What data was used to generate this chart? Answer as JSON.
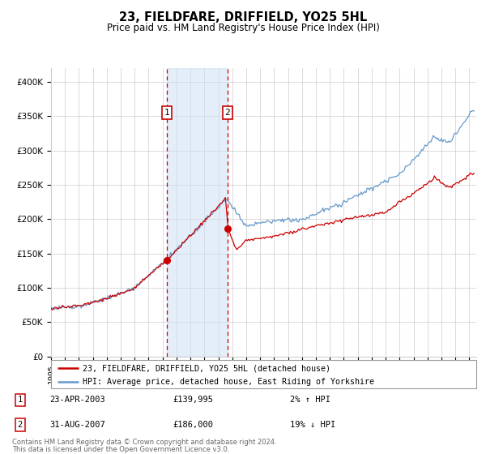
{
  "title": "23, FIELDFARE, DRIFFIELD, YO25 5HL",
  "subtitle": "Price paid vs. HM Land Registry's House Price Index (HPI)",
  "red_label": "23, FIELDFARE, DRIFFIELD, YO25 5HL (detached house)",
  "blue_label": "HPI: Average price, detached house, East Riding of Yorkshire",
  "footnote1": "Contains HM Land Registry data © Crown copyright and database right 2024.",
  "footnote2": "This data is licensed under the Open Government Licence v3.0.",
  "sale1_date": "23-APR-2003",
  "sale1_price": 139995,
  "sale1_hpi_text": "2% ↑ HPI",
  "sale2_date": "31-AUG-2007",
  "sale2_price": 186000,
  "sale2_hpi_text": "19% ↓ HPI",
  "sale1_x": 2003.31,
  "sale2_x": 2007.66,
  "ylim": [
    0,
    420000
  ],
  "yticks": [
    0,
    50000,
    100000,
    150000,
    200000,
    250000,
    300000,
    350000,
    400000
  ],
  "ytick_labels": [
    "£0",
    "£50K",
    "£100K",
    "£150K",
    "£200K",
    "£250K",
    "£300K",
    "£350K",
    "£400K"
  ],
  "red_color": "#cc0000",
  "blue_color": "#6699cc",
  "marker_color": "#cc0000",
  "dashed_color": "#cc0000",
  "shade_color": "#cce0f5",
  "grid_color": "#cccccc",
  "bg_color": "#ffffff",
  "box_color": "#cc0000",
  "xlim_start": 1995.0,
  "xlim_end": 2025.5
}
